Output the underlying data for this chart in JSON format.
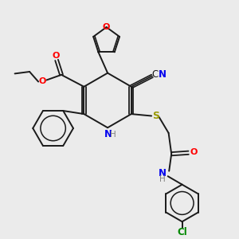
{
  "background_color": "#ebebeb",
  "bond_color": "#1a1a1a",
  "atom_colors": {
    "O": "#ff0000",
    "N": "#0000ee",
    "N_H": "#0000ee",
    "H": "#808080",
    "S": "#999900",
    "CN_C": "#000000",
    "CN_N": "#0000ee",
    "Cl": "#008800"
  },
  "figsize": [
    3.0,
    3.0
  ],
  "dpi": 100
}
